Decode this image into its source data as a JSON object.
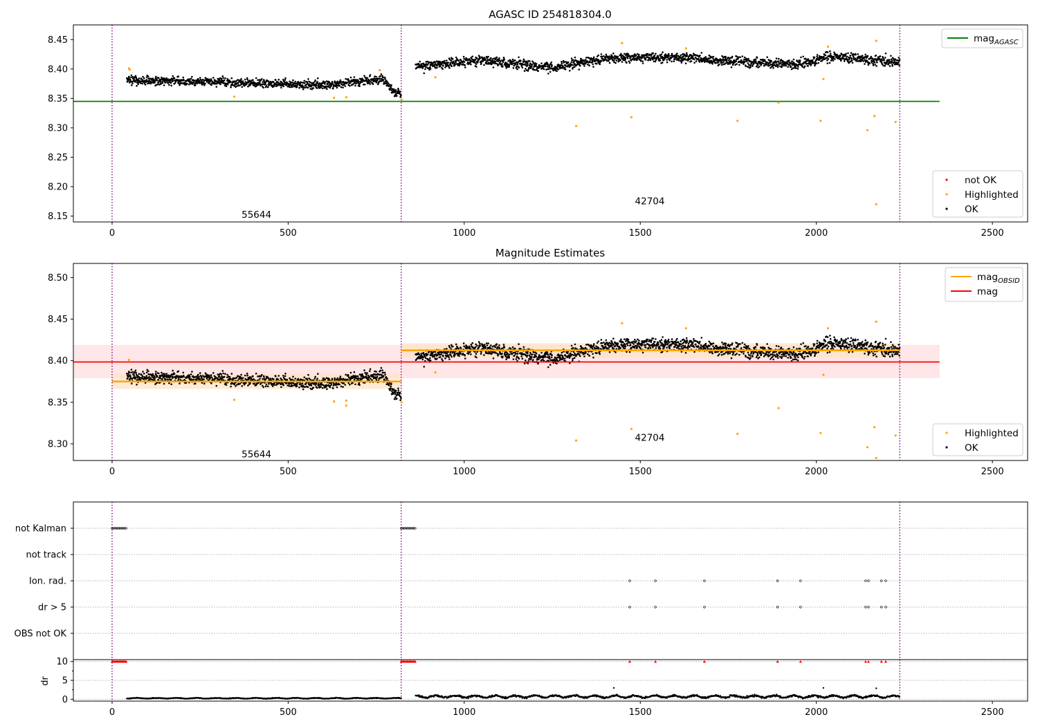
{
  "chart_data": [
    {
      "type": "scatter",
      "title": "AGASC ID 254818304.0",
      "xlim": [
        -110,
        2600
      ],
      "ylim": [
        8.14,
        8.475
      ],
      "xticks": [
        "0",
        "500",
        "1000",
        "1500",
        "2000",
        "2500"
      ],
      "yticks": [
        "8.15",
        "8.20",
        "8.25",
        "8.30",
        "8.35",
        "8.40",
        "8.45"
      ],
      "obsid_boundaries": [
        0,
        821,
        2237
      ],
      "obsids": [
        {
          "label": "55644",
          "x": 410,
          "y": 8.153
        },
        {
          "label": "42704",
          "x": 1527,
          "y": 8.176
        }
      ],
      "reference_lines": [
        {
          "name": "mag_AGASC",
          "y": 8.345,
          "x_range": [
            -110,
            2350
          ],
          "color": "#008000"
        }
      ],
      "series": [
        {
          "name": "OK",
          "color": "#000000",
          "segments": [
            {
              "x_range": [
                42,
                821
              ],
              "trend": [
                [
                  42,
                  8.381
                ],
                [
                  300,
                  8.378
                ],
                [
                  600,
                  8.372
                ],
                [
                  770,
                  8.383
                ],
                [
                  800,
                  8.362
                ],
                [
                  821,
                  8.358
                ]
              ],
              "noise": 0.007
            },
            {
              "x_range": [
                862,
                2237
              ],
              "trend": [
                [
                  862,
                  8.404
                ],
                [
                  1050,
                  8.415
                ],
                [
                  1250,
                  8.402
                ],
                [
                  1400,
                  8.418
                ],
                [
                  1600,
                  8.42
                ],
                [
                  1800,
                  8.412
                ],
                [
                  1950,
                  8.408
                ],
                [
                  2050,
                  8.422
                ],
                [
                  2237,
                  8.411
                ]
              ],
              "noise": 0.008
            }
          ]
        },
        {
          "name": "Highlighted",
          "color": "#ffa500",
          "points": [
            [
              48,
              8.401
            ],
            [
              50,
              8.399
            ],
            [
              347,
              8.353
            ],
            [
              630,
              8.351
            ],
            [
              665,
              8.352
            ],
            [
              760,
              8.398
            ],
            [
              822,
              8.348
            ],
            [
              918,
              8.386
            ],
            [
              1318,
              8.303
            ],
            [
              1448,
              8.444
            ],
            [
              1475,
              8.318
            ],
            [
              1630,
              8.435
            ],
            [
              1776,
              8.312
            ],
            [
              1893,
              8.343
            ],
            [
              2012,
              8.312
            ],
            [
              2020,
              8.383
            ],
            [
              2033,
              8.438
            ],
            [
              2145,
              8.296
            ],
            [
              2165,
              8.32
            ],
            [
              2170,
              8.448
            ],
            [
              2170,
              8.17
            ],
            [
              2225,
              8.31
            ]
          ]
        },
        {
          "name": "not OK",
          "color": "#ff0000",
          "points": []
        }
      ],
      "legends": [
        {
          "position": "top-right",
          "entries": [
            {
              "label": "mag",
              "subscript": "AGASC",
              "kind": "line",
              "color": "#008000"
            }
          ]
        },
        {
          "position": "bottom-right",
          "entries": [
            {
              "label": "not OK",
              "kind": "marker",
              "color": "#ff0000"
            },
            {
              "label": "Highlighted",
              "kind": "marker",
              "color": "#ffa500"
            },
            {
              "label": "OK",
              "kind": "marker",
              "color": "#000000"
            }
          ]
        }
      ]
    },
    {
      "type": "scatter",
      "title": "Magnitude Estimates",
      "xlim": [
        -110,
        2600
      ],
      "ylim": [
        8.28,
        8.517
      ],
      "xticks": [
        "0",
        "500",
        "1000",
        "1500",
        "2000",
        "2500"
      ],
      "yticks": [
        "8.30",
        "8.35",
        "8.40",
        "8.45",
        "8.50"
      ],
      "obsid_boundaries": [
        0,
        821,
        2237
      ],
      "obsids": [
        {
          "label": "55644",
          "x": 410,
          "y": 8.288
        },
        {
          "label": "42704",
          "x": 1527,
          "y": 8.308
        }
      ],
      "reference_lines": [
        {
          "name": "mag",
          "y": 8.3985,
          "x_range": [
            -110,
            2350
          ],
          "color": "#ff0000",
          "band": [
            8.379,
            8.419
          ],
          "band_color": "#ffdde0"
        },
        {
          "name": "mag_OBSID",
          "y": 8.375,
          "x_range": [
            0,
            821
          ],
          "color": "#ffa500",
          "band": [
            8.366,
            8.384
          ],
          "band_color": "#ffe3c4"
        },
        {
          "name": "mag_OBSID",
          "y": 8.4125,
          "x_range": [
            821,
            2237
          ],
          "color": "#ffa500",
          "band": [
            8.404,
            8.421
          ],
          "band_color": "#ffe3c4"
        }
      ],
      "series": [
        {
          "name": "OK",
          "color": "#000000",
          "segments": [
            {
              "x_range": [
                42,
                821
              ],
              "trend": [
                [
                  42,
                  8.381
                ],
                [
                  300,
                  8.378
                ],
                [
                  600,
                  8.372
                ],
                [
                  770,
                  8.383
                ],
                [
                  800,
                  8.362
                ],
                [
                  821,
                  8.358
                ]
              ],
              "noise": 0.007
            },
            {
              "x_range": [
                862,
                2237
              ],
              "trend": [
                [
                  862,
                  8.404
                ],
                [
                  1050,
                  8.415
                ],
                [
                  1250,
                  8.402
                ],
                [
                  1400,
                  8.418
                ],
                [
                  1600,
                  8.42
                ],
                [
                  1800,
                  8.412
                ],
                [
                  1950,
                  8.408
                ],
                [
                  2050,
                  8.422
                ],
                [
                  2237,
                  8.411
                ]
              ],
              "noise": 0.008
            }
          ]
        },
        {
          "name": "Highlighted",
          "color": "#ffa500",
          "points": [
            [
              48,
              8.401
            ],
            [
              347,
              8.353
            ],
            [
              630,
              8.351
            ],
            [
              665,
              8.352
            ],
            [
              665,
              8.346
            ],
            [
              822,
              8.35
            ],
            [
              918,
              8.386
            ],
            [
              1318,
              8.304
            ],
            [
              1448,
              8.445
            ],
            [
              1475,
              8.318
            ],
            [
              1630,
              8.439
            ],
            [
              1776,
              8.312
            ],
            [
              1893,
              8.343
            ],
            [
              2012,
              8.313
            ],
            [
              2020,
              8.383
            ],
            [
              2033,
              8.439
            ],
            [
              2145,
              8.296
            ],
            [
              2165,
              8.32
            ],
            [
              2170,
              8.447
            ],
            [
              2170,
              8.283
            ],
            [
              2225,
              8.31
            ]
          ]
        }
      ],
      "legends": [
        {
          "position": "top-right",
          "entries": [
            {
              "label": "mag",
              "subscript": "OBSID",
              "kind": "line",
              "color": "#ffa500"
            },
            {
              "label": "mag",
              "kind": "line",
              "color": "#ff0000"
            }
          ]
        },
        {
          "position": "bottom-right",
          "entries": [
            {
              "label": "Highlighted",
              "kind": "marker",
              "color": "#ffa500"
            },
            {
              "label": "OK",
              "kind": "marker",
              "color": "#000000"
            }
          ]
        }
      ]
    },
    {
      "type": "scatter",
      "title": "",
      "xlim": [
        -110,
        2600
      ],
      "flag_rows": [
        "not Kalman",
        "not track",
        "Ion. rad.",
        "dr > 5",
        "OBS not OK"
      ],
      "flag_points": {
        "not Kalman": [
          [
            0,
            42
          ],
          [
            821,
            862
          ]
        ],
        "not track": [],
        "Ion. rad.": [
          1470,
          1543,
          1682,
          1890,
          1955,
          2140,
          2148,
          2185,
          2197
        ],
        "dr > 5": [
          1470,
          1543,
          1682,
          1890,
          1955,
          2140,
          2148,
          2185,
          2197
        ],
        "OBS not OK": []
      },
      "obsid_boundaries": [
        0,
        821,
        2237
      ]
    },
    {
      "type": "scatter",
      "title": "",
      "ylabel": "dr",
      "xlim": [
        -110,
        2600
      ],
      "ylim": [
        -0.5,
        10.5
      ],
      "xticks": [
        "0",
        "500",
        "1000",
        "1500",
        "2000",
        "2500"
      ],
      "yticks": [
        "0",
        "5",
        "10"
      ],
      "obsid_boundaries": [
        0,
        821,
        2237
      ],
      "series": [
        {
          "name": "dr capped",
          "color": "#ff0000",
          "marker": "triangle",
          "y": 10,
          "ranges": [
            [
              0,
              42
            ],
            [
              821,
              862
            ]
          ],
          "points": [
            1470,
            1543,
            1682,
            1890,
            1955,
            2140,
            2148,
            2185,
            2197
          ]
        },
        {
          "name": "dr",
          "color": "#000000",
          "segments": [
            {
              "x_range": [
                42,
                821
              ],
              "base": 0.25,
              "noise": 0.15
            },
            {
              "x_range": [
                862,
                2237
              ],
              "base": 0.7,
              "noise": 0.45
            }
          ],
          "outliers": [
            [
              1425,
              3.0
            ],
            [
              2020,
              3.0
            ],
            [
              2170,
              2.9
            ]
          ]
        }
      ]
    }
  ]
}
